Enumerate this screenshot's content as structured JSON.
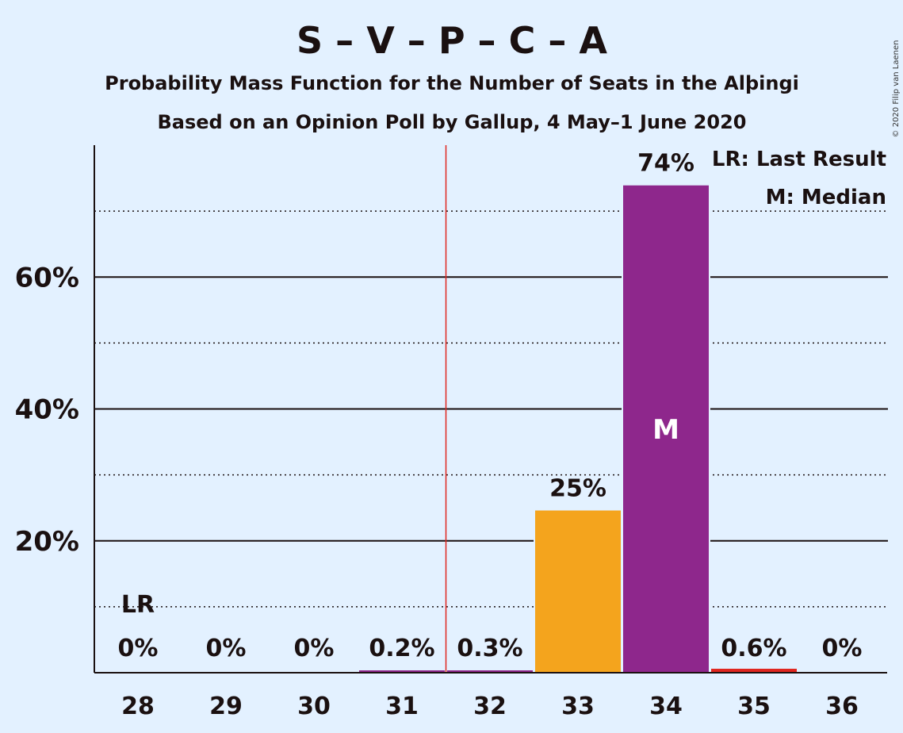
{
  "chart_data": {
    "type": "bar",
    "title": "S – V – P – C – A",
    "subtitle_1": "Probability Mass Function for the Number of Seats in the Alþingi",
    "subtitle_2": "Based on an Opinion Poll by Gallup, 4 May–1 June 2020",
    "categories": [
      "28",
      "29",
      "30",
      "31",
      "32",
      "33",
      "34",
      "35",
      "36"
    ],
    "values": [
      0,
      0,
      0,
      0.2,
      0.3,
      24.6,
      73.9,
      0.6,
      0
    ],
    "data_labels": [
      "0%",
      "0%",
      "0%",
      "0.2%",
      "0.3%",
      "25%",
      "74%",
      "0.6%",
      "0%"
    ],
    "bar_colors": [
      "#8e278c",
      "#8e278c",
      "#8e278c",
      "#8e278c",
      "#8e278c",
      "#f4a41d",
      "#8e278c",
      "#e0261f",
      "#8e278c"
    ],
    "ylim": [
      0,
      80
    ],
    "yticks": [
      20,
      40,
      60
    ],
    "ytick_labels": [
      "20%",
      "40%",
      "60%"
    ],
    "minor_gridlines": [
      10,
      30,
      50,
      70
    ],
    "majority_line_after_category": "31",
    "majority_line_color": "#e0261f",
    "last_result": {
      "category": "28",
      "label": "LR"
    },
    "median": {
      "category": "34",
      "label": "M"
    },
    "legend": [
      "LR: Last Result",
      "M: Median"
    ],
    "legend_position": "top-right",
    "xlabel": "",
    "ylabel": "",
    "copyright": "© 2020 Filip van Laenen"
  }
}
